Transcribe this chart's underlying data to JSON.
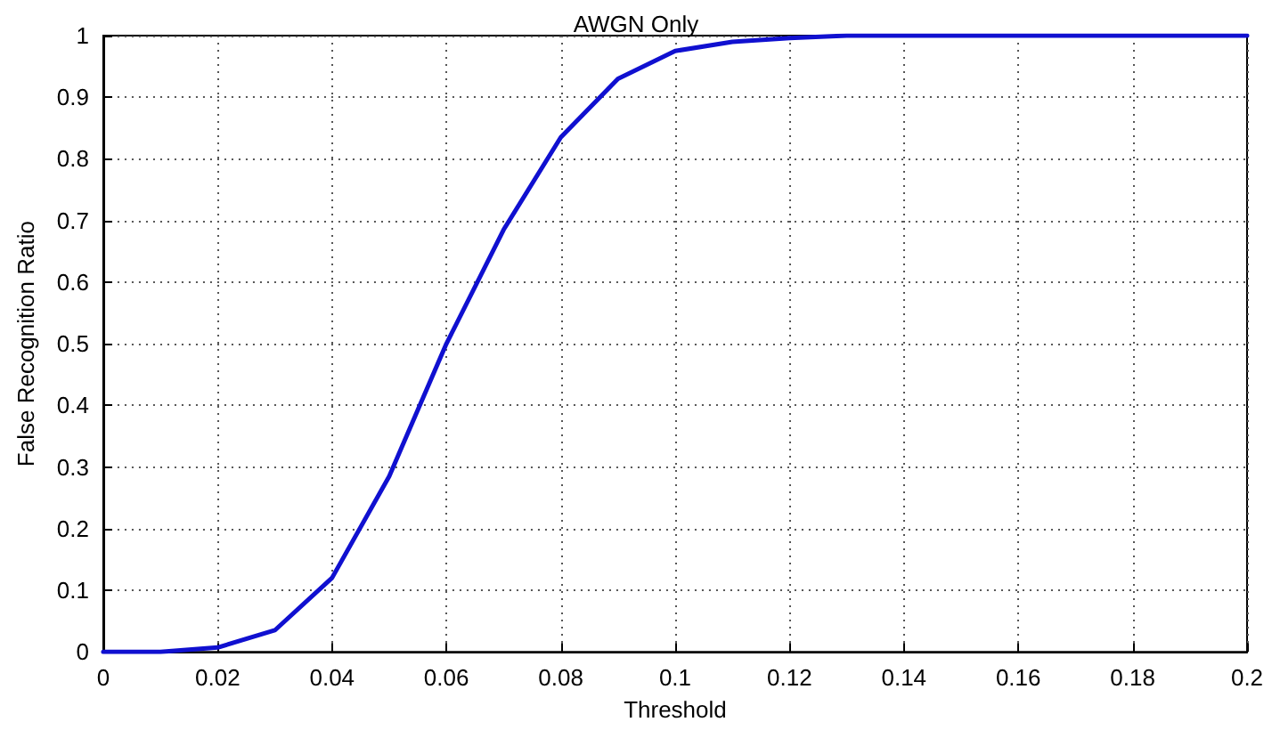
{
  "chart_data": {
    "type": "line",
    "title": "AWGN Only",
    "xlabel": "Threshold",
    "ylabel": "False Recognition Ratio",
    "series": [
      {
        "color": "#1010d0",
        "x": [
          0,
          0.01,
          0.02,
          0.03,
          0.04,
          0.05,
          0.06,
          0.07,
          0.08,
          0.09,
          0.1,
          0.11,
          0.12,
          0.13,
          0.14,
          0.15,
          0.16,
          0.17,
          0.18,
          0.19,
          0.2
        ],
        "values": [
          0,
          0,
          0.007,
          0.035,
          0.12,
          0.285,
          0.5,
          0.685,
          0.835,
          0.93,
          0.975,
          0.99,
          0.996,
          1,
          1,
          1,
          1,
          1,
          1,
          1,
          1
        ]
      }
    ],
    "xlim": [
      0,
      0.2
    ],
    "xticks": [
      0,
      0.02,
      0.04,
      0.06,
      0.08,
      0.1,
      0.12,
      0.14,
      0.16,
      0.18,
      0.2
    ],
    "ylim": [
      0,
      1
    ],
    "yticks": [
      0,
      0.1,
      0.2,
      0.3,
      0.4,
      0.5,
      0.6,
      0.7,
      0.8,
      0.9,
      1
    ],
    "grid": true,
    "marker": "none",
    "line_style": "solid"
  }
}
